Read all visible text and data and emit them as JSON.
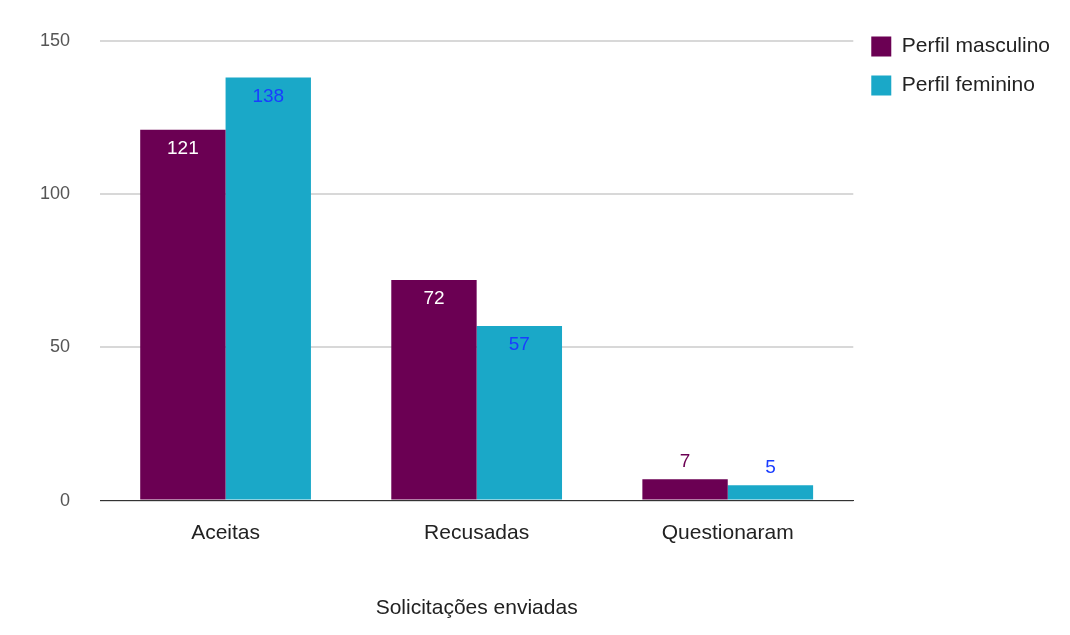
{
  "chart_data": {
    "type": "bar",
    "xlabel": "Solicitações enviadas",
    "categories": [
      "Aceitas",
      "Recusadas",
      "Questionaram"
    ],
    "series": [
      {
        "name": "Perfil masculino",
        "color": "#6b0053",
        "values": [
          121,
          72,
          7
        ]
      },
      {
        "name": "Perfil feminino",
        "color": "#1aa8c8",
        "values": [
          138,
          57,
          5
        ]
      }
    ],
    "ylim": [
      0,
      150
    ],
    "yticks": [
      0,
      50,
      100,
      150
    ],
    "grid": "y",
    "legend": "top right",
    "data_labels": true
  }
}
